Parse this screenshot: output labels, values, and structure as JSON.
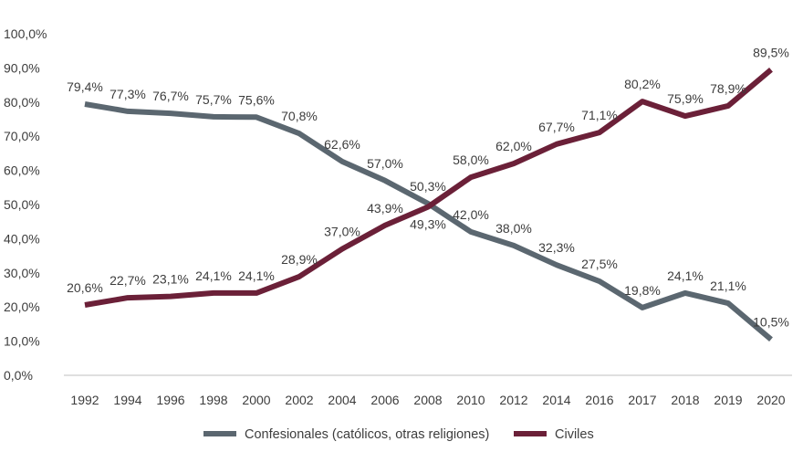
{
  "chart_data": {
    "type": "line",
    "title": "",
    "xlabel": "",
    "ylabel": "",
    "categories": [
      "1992",
      "1994",
      "1996",
      "1998",
      "2000",
      "2002",
      "2004",
      "2006",
      "2008",
      "2010",
      "2012",
      "2014",
      "2016",
      "2017",
      "2018",
      "2019",
      "2020"
    ],
    "ylim": [
      0,
      100
    ],
    "yticks": [
      0,
      10,
      20,
      30,
      40,
      50,
      60,
      70,
      80,
      90,
      100
    ],
    "ytick_labels": [
      "0,0%",
      "10,0%",
      "20,0%",
      "30,0%",
      "40,0%",
      "50,0%",
      "60,0%",
      "70,0%",
      "80,0%",
      "90,0%",
      "100,0%"
    ],
    "grid": false,
    "legend_position": "bottom",
    "series": [
      {
        "name": "Confesionales (católicos, otras religiones)",
        "color": "#5b6770",
        "values": [
          79.4,
          77.3,
          76.7,
          75.7,
          75.6,
          70.8,
          62.6,
          57.0,
          50.3,
          42.0,
          38.0,
          32.3,
          27.5,
          19.8,
          24.1,
          21.1,
          10.5
        ],
        "labels": [
          "79,4%",
          "77,3%",
          "76,7%",
          "75,7%",
          "75,6%",
          "70,8%",
          "62,6%",
          "57,0%",
          "50,3%",
          "42,0%",
          "38,0%",
          "32,3%",
          "27,5%",
          "19,8%",
          "24,1%",
          "21,1%",
          "10,5%"
        ]
      },
      {
        "name": "Civiles",
        "color": "#6b2038",
        "values": [
          20.6,
          22.7,
          23.1,
          24.1,
          24.1,
          28.9,
          37.0,
          43.9,
          49.3,
          58.0,
          62.0,
          67.7,
          71.1,
          80.2,
          75.9,
          78.9,
          89.5
        ],
        "labels": [
          "20,6%",
          "22,7%",
          "23,1%",
          "24,1%",
          "24,1%",
          "28,9%",
          "37,0%",
          "43,9%",
          "49,3%",
          "58,0%",
          "62,0%",
          "67,7%",
          "71,1%",
          "80,2%",
          "75,9%",
          "78,9%",
          "89,5%"
        ]
      }
    ]
  }
}
